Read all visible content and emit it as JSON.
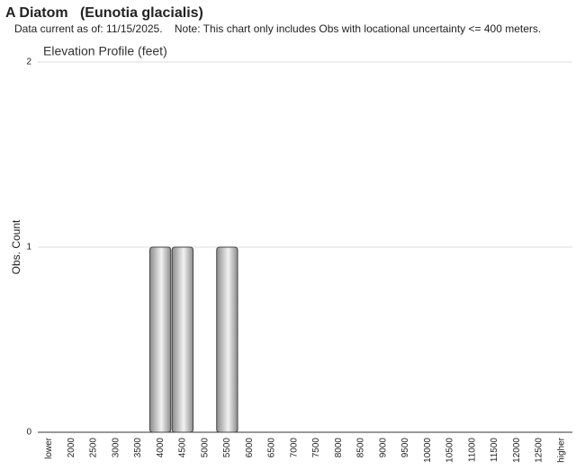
{
  "chart_data": {
    "type": "bar",
    "title": "A Diatom   (Eunotia glacialis)",
    "subtitle": "Data current as of: 11/15/2025.    Note: This chart only includes Obs with locational uncertainty <= 400 meters.",
    "chart_title": "Elevation Profile (feet)",
    "y_label": "Obs. Count",
    "categories": [
      "lower",
      "2000",
      "2500",
      "3000",
      "3500",
      "4000",
      "4500",
      "5000",
      "5500",
      "6000",
      "6500",
      "7000",
      "7500",
      "8000",
      "8500",
      "9000",
      "9500",
      "10000",
      "10500",
      "11000",
      "11500",
      "12000",
      "12500",
      "higher"
    ],
    "values": [
      0,
      0,
      0,
      0,
      0,
      1,
      1,
      0,
      1,
      0,
      0,
      0,
      0,
      0,
      0,
      0,
      0,
      0,
      0,
      0,
      0,
      0,
      0,
      0
    ],
    "color": "#8c8c8c",
    "ylim": [
      0,
      2
    ],
    "yticks": [
      0,
      1,
      2
    ],
    "grid": true
  }
}
